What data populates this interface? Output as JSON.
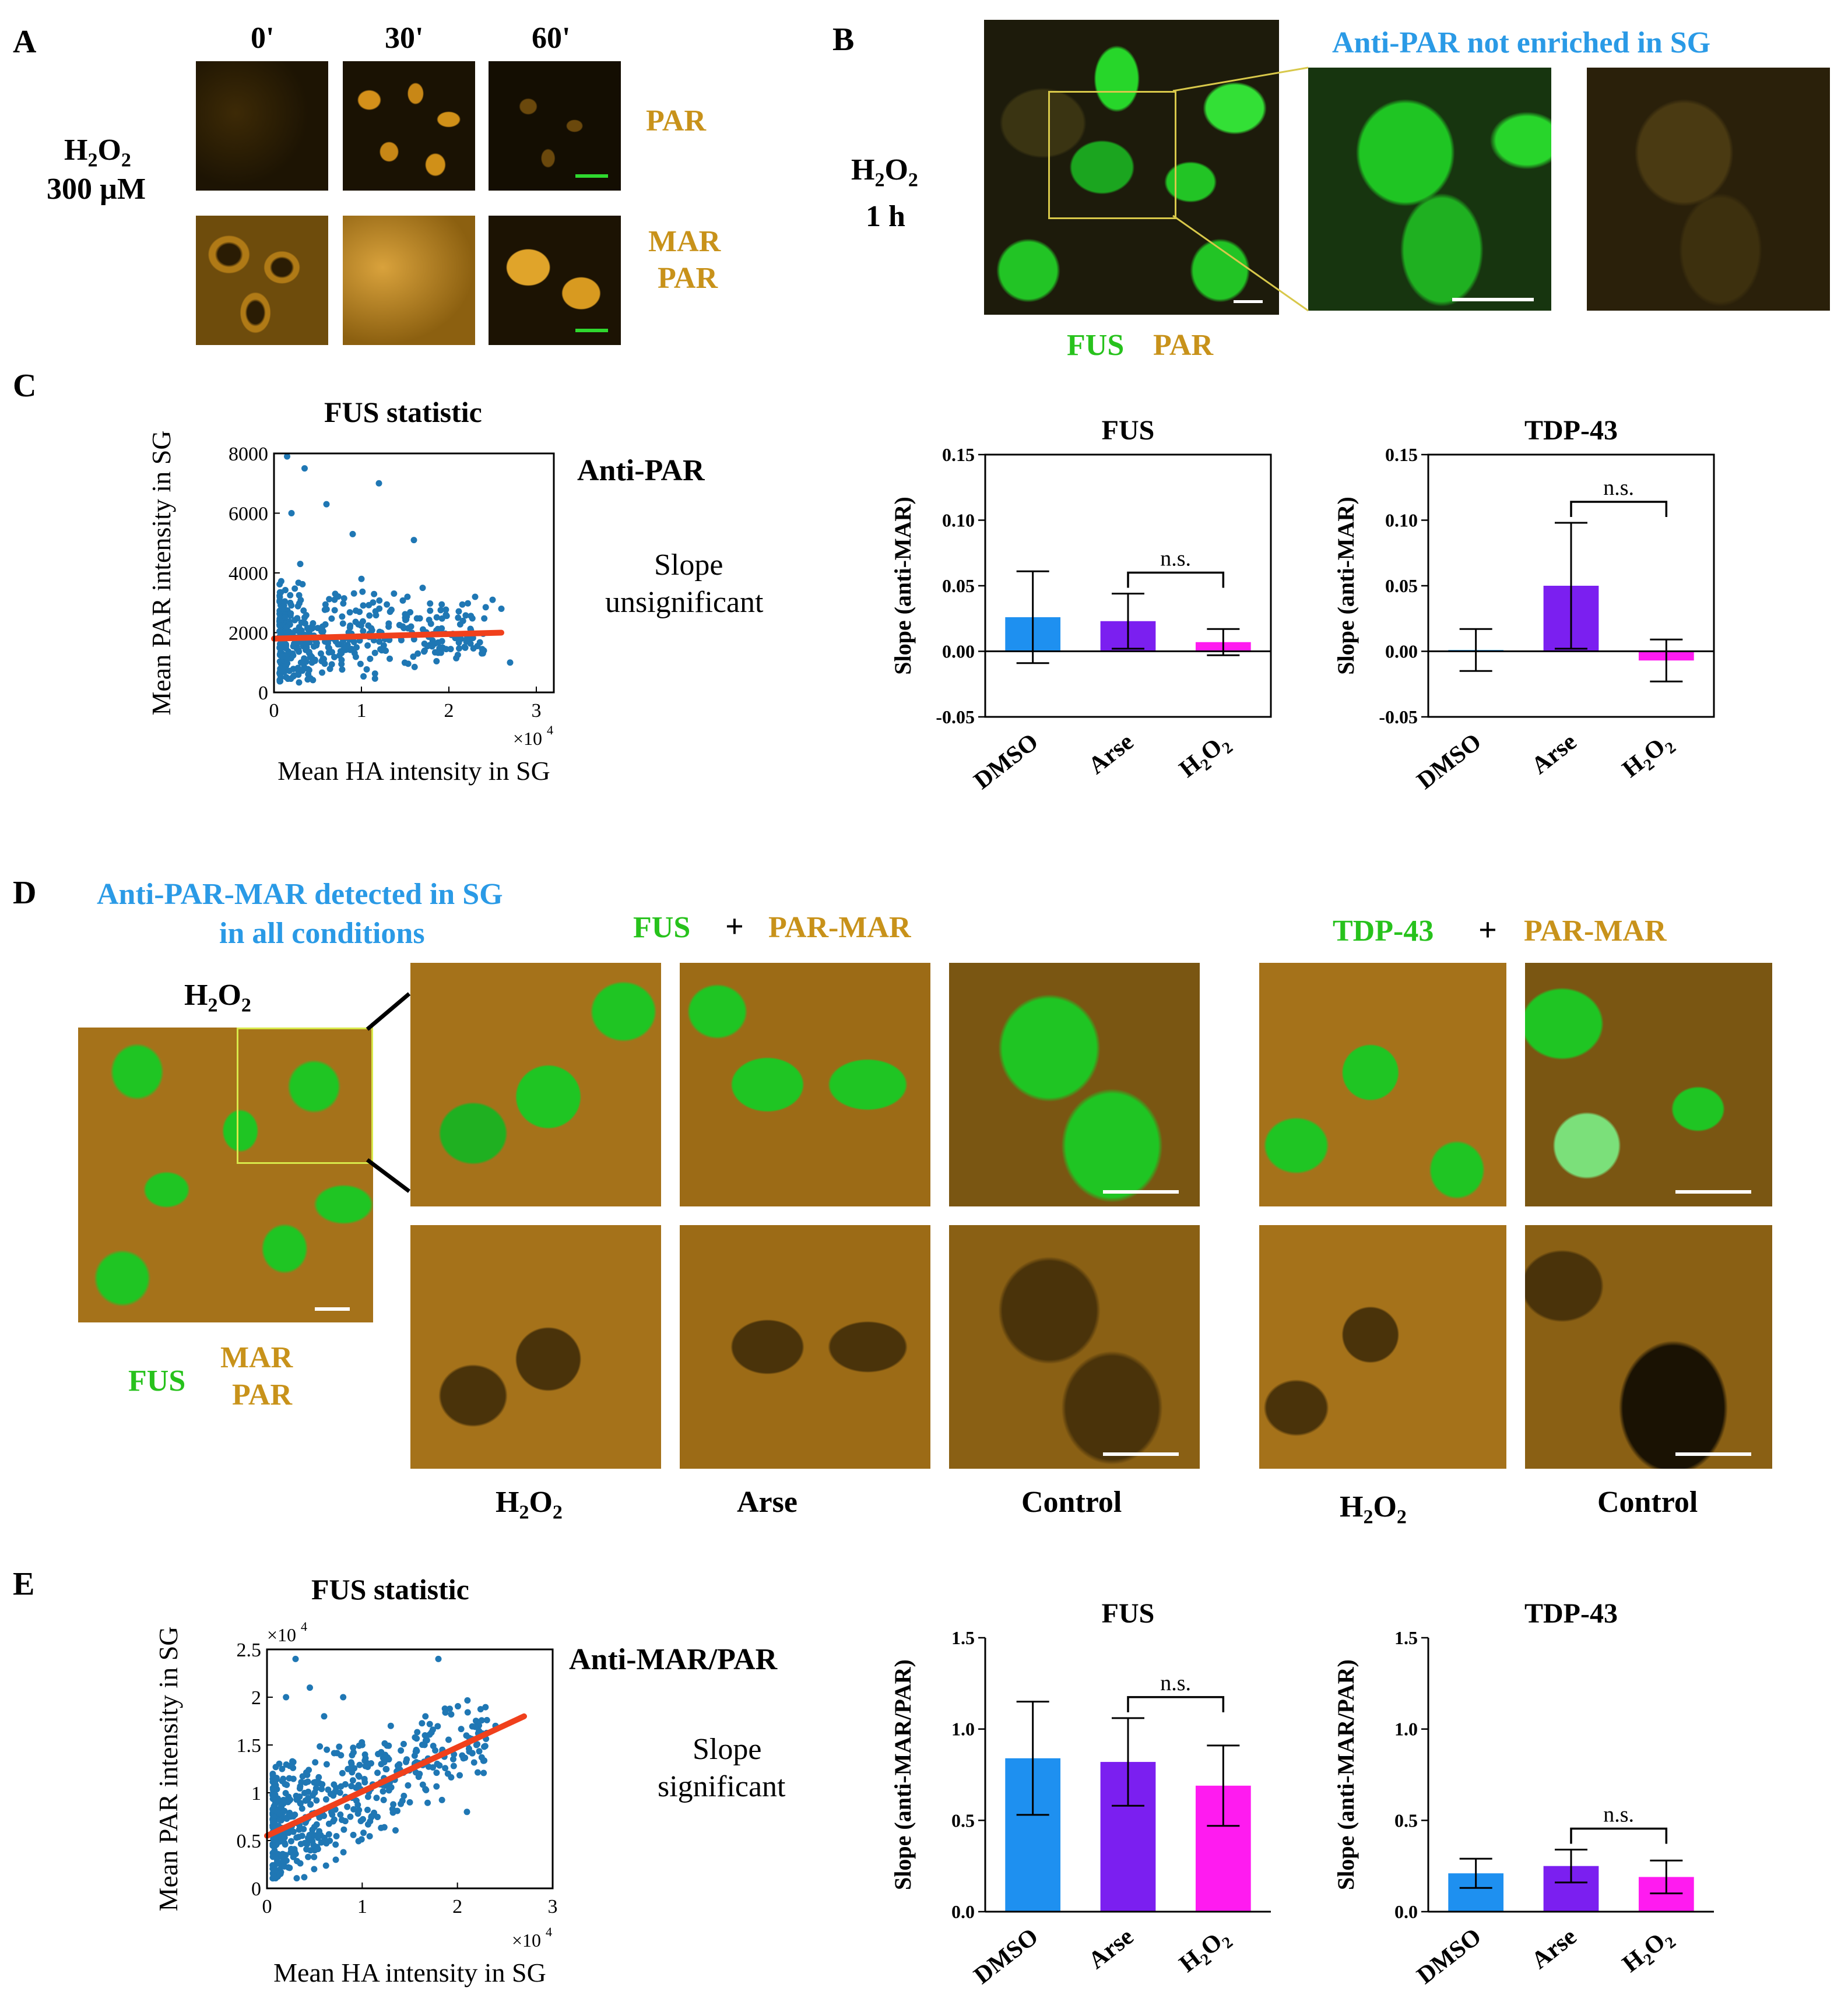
{
  "panel_letters": {
    "a": "A",
    "b": "B",
    "c": "C",
    "d": "D",
    "e": "E"
  },
  "panelA": {
    "times": [
      "0'",
      "30'",
      "60'"
    ],
    "treatment_line1": "H2O2",
    "treatment_line2": "300 µM",
    "row_labels": [
      "PAR",
      "MAR PAR"
    ],
    "label_par": "PAR",
    "label_mar": "MAR",
    "label_par2": "PAR"
  },
  "panelB": {
    "treatment_line1": "H2O2",
    "treatment_line2": "1 h",
    "title": "Anti-PAR not enriched in SG",
    "legend_green": "FUS",
    "legend_gold": "PAR"
  },
  "panelC": {
    "scatter_title": "FUS statistic",
    "antibody": "Anti-PAR",
    "slope_text_1": "Slope",
    "slope_text_2": "unsignificant",
    "ylabel": "Mean PAR intensity in SG",
    "xlabel": "Mean HA intensity in SG",
    "x_multiplier": "×10",
    "x_multiplier_exp": "4"
  },
  "panelD": {
    "title_line1": "Anti-PAR-MAR detected in SG",
    "title_line2": "in all conditions",
    "overview_label": "H2O2",
    "fus_label": "FUS",
    "plus": "+",
    "parmar_label": "PAR-MAR",
    "tdp_label": "TDP-43",
    "legend_green": "FUS",
    "legend_mar": "MAR",
    "legend_par": "PAR",
    "columns": [
      "H2O2",
      "Arse",
      "Control",
      "H2O2",
      "Control"
    ]
  },
  "panelE": {
    "scatter_title": "FUS statistic",
    "antibody": "Anti-MAR/PAR",
    "slope_text_1": "Slope",
    "slope_text_2": "significant",
    "ylabel": "Mean PAR intensity in SG",
    "xlabel": "Mean HA intensity in SG",
    "x_multiplier": "×10",
    "x_multiplier_exp": "4",
    "y_multiplier": "×10",
    "y_multiplier_exp": "4"
  },
  "colors": {
    "dmso": "#1e90f0",
    "arse": "#7b1ff0",
    "h2o2": "#ff1bf0",
    "fit": "#f0401c",
    "scatter": "#1f77b4",
    "gold_text": "#c8921a",
    "green_text": "#27c21c",
    "blue_text": "#2a9ae6"
  },
  "chart_data": [
    {
      "id": "C-scatter",
      "type": "scatter",
      "title": "FUS statistic",
      "xlabel": "Mean HA intensity in SG",
      "ylabel": "Mean PAR intensity in SG",
      "xlim": [
        0,
        3.2
      ],
      "ylim": [
        0,
        8000
      ],
      "x_scale_note": "×10^4",
      "xticks": [
        "0",
        "1",
        "2",
        "3"
      ],
      "yticks": [
        "0",
        "2000",
        "4000",
        "6000",
        "8000"
      ],
      "fit_line": {
        "x": [
          0.0,
          2.6
        ],
        "y": [
          1800,
          2000
        ]
      },
      "sample_points": [
        [
          0.15,
          7900
        ],
        [
          0.35,
          7500
        ],
        [
          0.6,
          6300
        ],
        [
          1.2,
          7000
        ],
        [
          0.2,
          6000
        ],
        [
          0.9,
          5300
        ],
        [
          1.6,
          5100
        ],
        [
          1.7,
          3500
        ],
        [
          2.3,
          3200
        ],
        [
          2.5,
          3100
        ],
        [
          2.6,
          2800
        ],
        [
          2.2,
          1700
        ],
        [
          2.4,
          1400
        ],
        [
          2.7,
          1000
        ],
        [
          1.9,
          1500
        ],
        [
          1.5,
          2500
        ],
        [
          1.0,
          3800
        ],
        [
          0.7,
          3300
        ],
        [
          0.3,
          4300
        ]
      ]
    },
    {
      "id": "C-FUS",
      "type": "bar",
      "title": "FUS",
      "ylabel": "Slope (anti-MAR)",
      "categories": [
        "DMSO",
        "Arse",
        "H2O2"
      ],
      "values": [
        0.026,
        0.023,
        0.007
      ],
      "errors": [
        0.035,
        0.021,
        0.01
      ],
      "ylim": [
        -0.05,
        0.15
      ],
      "yticks": [
        "-0.05",
        "0.00",
        "0.05",
        "0.10",
        "0.15"
      ],
      "annotation": "n.s."
    },
    {
      "id": "C-TDP43",
      "type": "bar",
      "title": "TDP-43",
      "ylabel": "Slope (anti-MAR)",
      "categories": [
        "DMSO",
        "Arse",
        "H2O2"
      ],
      "values": [
        0.001,
        0.05,
        -0.007
      ],
      "errors": [
        0.016,
        0.048,
        0.016
      ],
      "ylim": [
        -0.05,
        0.15
      ],
      "yticks": [
        "-0.05",
        "0.00",
        "0.05",
        "0.10",
        "0.15"
      ],
      "annotation": "n.s."
    },
    {
      "id": "E-scatter",
      "type": "scatter",
      "title": "FUS statistic",
      "xlabel": "Mean HA intensity in SG",
      "ylabel": "Mean PAR intensity in SG",
      "xlim": [
        0,
        3
      ],
      "ylim": [
        0,
        2.5
      ],
      "x_scale_note": "×10^4",
      "y_scale_note": "×10^4",
      "xticks": [
        "0",
        "1",
        "2",
        "3"
      ],
      "yticks": [
        "0",
        "0.5",
        "1",
        "1.5",
        "2",
        "2.5"
      ],
      "fit_line": {
        "x": [
          0.0,
          2.7
        ],
        "y": [
          0.55,
          1.8
        ]
      },
      "sample_points": [
        [
          0.3,
          2.4
        ],
        [
          0.45,
          2.1
        ],
        [
          0.8,
          2.0
        ],
        [
          1.3,
          1.7
        ],
        [
          1.8,
          2.4
        ],
        [
          2.2,
          1.5
        ],
        [
          2.4,
          1.7
        ],
        [
          2.1,
          0.8
        ],
        [
          1.9,
          1.2
        ],
        [
          1.5,
          0.9
        ],
        [
          1.2,
          1.3
        ],
        [
          1.0,
          1.5
        ],
        [
          0.6,
          1.8
        ],
        [
          0.2,
          2.0
        ]
      ]
    },
    {
      "id": "E-FUS",
      "type": "bar",
      "title": "FUS",
      "ylabel": "Slope (anti-MAR/PAR)",
      "categories": [
        "DMSO",
        "Arse",
        "H2O2"
      ],
      "values": [
        0.84,
        0.82,
        0.69
      ],
      "errors": [
        0.31,
        0.24,
        0.22
      ],
      "ylim": [
        0,
        1.5
      ],
      "yticks": [
        "0.0",
        "0.5",
        "1.0",
        "1.5"
      ],
      "annotation": "n.s."
    },
    {
      "id": "E-TDP43",
      "type": "bar",
      "title": "TDP-43",
      "ylabel": "Slope (anti-MAR/PAR)",
      "categories": [
        "DMSO",
        "Arse",
        "H2O2"
      ],
      "values": [
        0.21,
        0.25,
        0.19
      ],
      "errors": [
        0.08,
        0.09,
        0.09
      ],
      "ylim": [
        0,
        1.5
      ],
      "yticks": [
        "0.0",
        "0.5",
        "1.0",
        "1.5"
      ],
      "annotation": "n.s."
    }
  ]
}
